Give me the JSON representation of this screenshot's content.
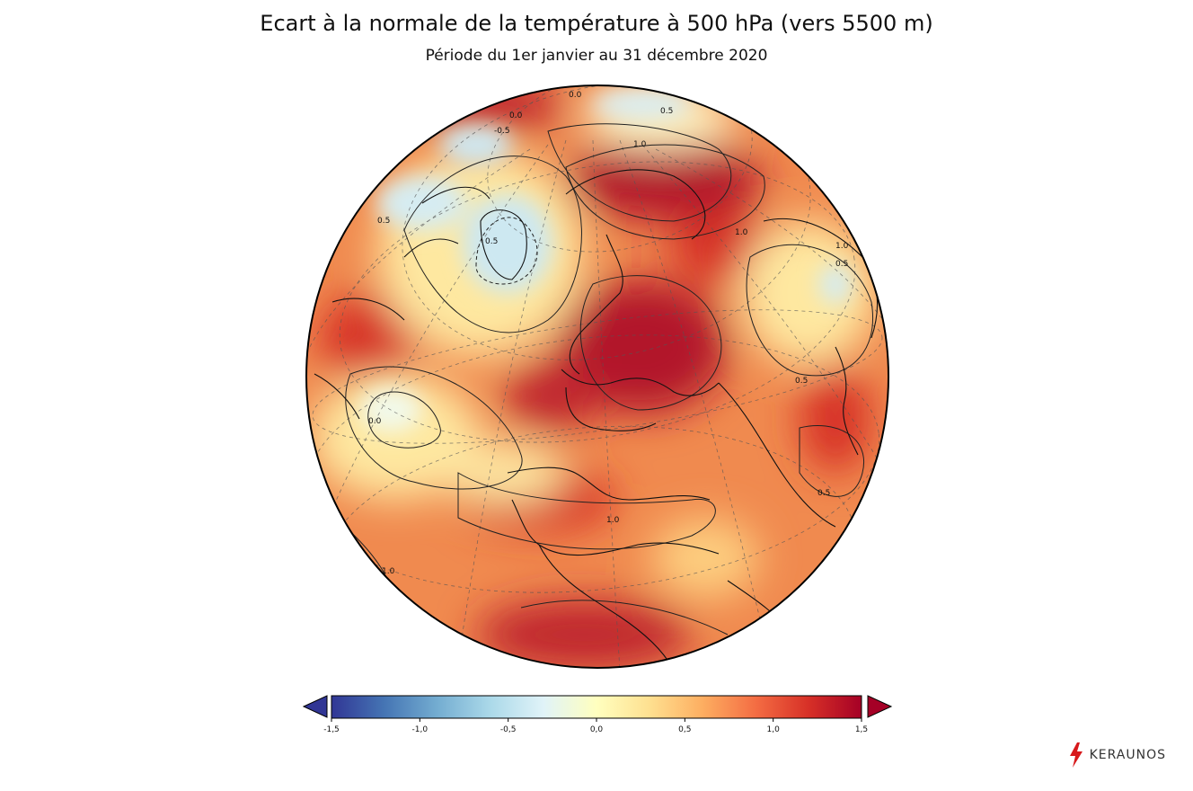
{
  "title": "Ecart à la normale de la température à 500 hPa (vers 5500 m)",
  "subtitle": "Période du 1er janvier au 31 décembre 2020",
  "colorbar": {
    "min": -1.5,
    "max": 1.5,
    "extend": "both",
    "ticks": [
      "-1,5",
      "-1,0",
      "-0,5",
      "0,0",
      "0,5",
      "1,0",
      "1,5"
    ],
    "tick_values": [
      -1.5,
      -1.0,
      -0.5,
      0.0,
      0.5,
      1.0,
      1.5
    ],
    "colors": [
      "#313695",
      "#4575b4",
      "#74add1",
      "#abd9e9",
      "#e0f3f8",
      "#ffffbf",
      "#fee090",
      "#fdae61",
      "#f46d43",
      "#d73027",
      "#a50026"
    ]
  },
  "contour_labels": [
    "0.0",
    "0.5",
    "-0.5",
    "1.0",
    "0.5",
    "0.0",
    "0.5",
    "1.0",
    "0.5",
    "0.0",
    "1.0",
    "0.5",
    "1.0",
    "0.5",
    "1.0"
  ],
  "logo": {
    "text": "KERAUNOS",
    "icon": "lightning-bolt-icon"
  }
}
